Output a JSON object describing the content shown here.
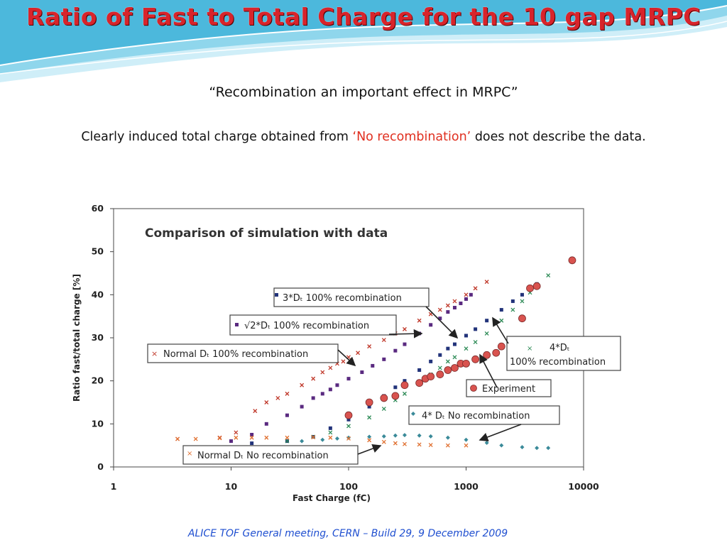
{
  "slide": {
    "title": "Ratio of Fast to Total Charge for the 10 gap MRPC",
    "quote": "“Recombination an important effect in MRPC”",
    "statement_before": "Clearly induced total charge obtained from ",
    "statement_highlight": "‘No recombination’",
    "statement_after": " does not describe the data.",
    "footer": "ALICE TOF General meeting,  CERN – Build 29, 9 December 2009"
  },
  "colors": {
    "title": "#d8242b",
    "highlight": "#e03020",
    "footer": "#1f4fd0",
    "wave_dark": "#1aa0c8",
    "wave_light": "#bfe8f4"
  },
  "chart_data": {
    "type": "scatter",
    "title": "Comparison of simulation with data",
    "xlabel": "Fast Charge (fC)",
    "ylabel": "Ratio fast/total charge [%]",
    "xscale": "log",
    "xlim": [
      1,
      10000
    ],
    "ylim": [
      0,
      60
    ],
    "x_ticks": [
      1,
      10,
      100,
      1000,
      10000
    ],
    "x_tick_labels": [
      "1",
      "10",
      "100",
      "1000",
      "10000"
    ],
    "y_ticks": [
      0,
      10,
      20,
      30,
      40,
      50,
      60
    ],
    "y_tick_labels": [
      "0",
      "10",
      "20",
      "30",
      "40",
      "50",
      "60"
    ],
    "grid": false,
    "series": [
      {
        "name": "Normal Dₜ 100% recombination",
        "marker": "x",
        "color": "#c0392b",
        "x": [
          3.5,
          8,
          11,
          16,
          20,
          25,
          30,
          40,
          50,
          60,
          70,
          80,
          90,
          100,
          120,
          150,
          200,
          250,
          300,
          400,
          500,
          600,
          700,
          800,
          1000,
          1200,
          1500
        ],
        "y": [
          6.5,
          6.8,
          8,
          13,
          15,
          16,
          17,
          19,
          20.5,
          22,
          23,
          24,
          24.5,
          25.5,
          26.5,
          28,
          29.5,
          31,
          32,
          34,
          35.5,
          36.5,
          37.5,
          38.5,
          40,
          41.5,
          43
        ]
      },
      {
        "name": "√2*Dₜ 100% recombination",
        "marker": "square",
        "color": "#5a2a80",
        "x": [
          10,
          15,
          20,
          30,
          40,
          50,
          60,
          70,
          80,
          100,
          130,
          160,
          200,
          250,
          300,
          400,
          500,
          600,
          700,
          800,
          900,
          1000,
          1100
        ],
        "y": [
          6,
          7.5,
          10,
          12,
          14,
          16,
          17,
          18,
          19,
          20.5,
          22,
          23.5,
          25,
          27,
          28.5,
          31,
          33,
          34.5,
          36,
          37,
          38,
          39,
          40
        ]
      },
      {
        "name": "3*Dₜ 100% recombination",
        "marker": "square",
        "color": "#22337a",
        "x": [
          15,
          30,
          50,
          70,
          100,
          150,
          200,
          250,
          300,
          400,
          500,
          600,
          700,
          800,
          1000,
          1200,
          1500,
          2000,
          2500,
          3000,
          3500,
          4000
        ],
        "y": [
          5.5,
          6,
          7,
          9,
          11,
          14,
          16.5,
          18.5,
          20,
          22.5,
          24.5,
          26,
          27.5,
          28.5,
          30.5,
          32,
          34,
          36.5,
          38.5,
          40,
          41.5,
          42.5
        ]
      },
      {
        "name": "4*Dₜ 100% recombination",
        "marker": "x",
        "color": "#2e8b57",
        "x": [
          30,
          50,
          70,
          100,
          150,
          200,
          250,
          300,
          400,
          500,
          600,
          700,
          800,
          1000,
          1200,
          1500,
          2000,
          2500,
          3000,
          3500,
          4000,
          5000
        ],
        "y": [
          6,
          7,
          8,
          9.5,
          11.5,
          13.5,
          15.5,
          17,
          19.5,
          21.5,
          23,
          24.5,
          25.5,
          27.5,
          29,
          31,
          34,
          36.5,
          38.5,
          40.5,
          42,
          44.5
        ]
      },
      {
        "name": "Experiment",
        "marker": "circle",
        "color": "#d9534f",
        "x": [
          100,
          150,
          200,
          250,
          300,
          400,
          450,
          500,
          600,
          700,
          800,
          900,
          1000,
          1200,
          1500,
          1800,
          2000,
          3000,
          3500,
          4000,
          8000
        ],
        "y": [
          12,
          15,
          16,
          16.5,
          19,
          19.5,
          20.5,
          21,
          21.5,
          22.5,
          23,
          24,
          24,
          25,
          26,
          26.5,
          28,
          34.5,
          41.5,
          42,
          48
        ]
      },
      {
        "name": "4* Dₜ  No recombination",
        "marker": "diamond",
        "color": "#3a8a99",
        "x": [
          40,
          60,
          80,
          100,
          150,
          200,
          250,
          300,
          400,
          500,
          700,
          1000,
          1500,
          2000,
          3000,
          4000,
          5000
        ],
        "y": [
          6,
          6.3,
          6.6,
          6.8,
          7,
          7.1,
          7.3,
          7.4,
          7.3,
          7.1,
          6.8,
          6.3,
          5.6,
          5,
          4.6,
          4.4,
          4.4
        ]
      },
      {
        "name": "Normal Dₜ  No recombination",
        "marker": "x",
        "color": "#e07030",
        "x": [
          3.5,
          5,
          8,
          11,
          15,
          20,
          30,
          50,
          70,
          100,
          150,
          200,
          250,
          300,
          400,
          500,
          700,
          1000
        ],
        "y": [
          6.5,
          6.5,
          6.7,
          6.8,
          6.8,
          6.8,
          6.8,
          6.9,
          6.8,
          6.6,
          6.2,
          5.8,
          5.5,
          5.3,
          5.2,
          5.1,
          5.0,
          5.0
        ]
      }
    ],
    "legend_labels": {
      "s3dt": "3*Dₜ 100% recombination",
      "sqrt2": "√2*Dₜ 100% recombination",
      "normal": "Normal Dₜ 100% recombination",
      "dt4_a": "4*Dₜ",
      "dt4_b": "100% recombination",
      "experiment": "Experiment",
      "dt4_norec": "4* Dₜ  No recombination",
      "normal_norec": "Normal Dₜ  No recombination"
    }
  }
}
